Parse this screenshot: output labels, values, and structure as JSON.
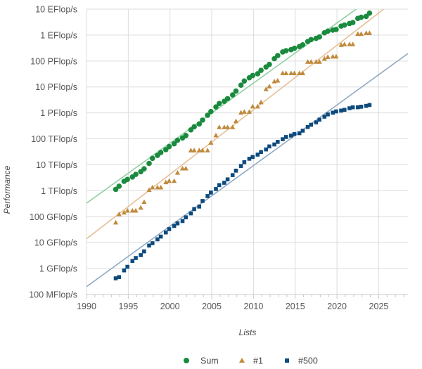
{
  "chart_data": {
    "type": "scatter",
    "title": "",
    "xlabel": "Lists",
    "ylabel": "Performance",
    "xlim": [
      1990,
      2028.5
    ],
    "ylim_gflops_log": [
      0.1,
      10000000000
    ],
    "yscale": "log",
    "grid": true,
    "legend_position": "bottom",
    "x_ticks": [
      "1990",
      "1995",
      "2000",
      "2005",
      "2010",
      "2015",
      "2020",
      "2025"
    ],
    "x_tick_values": [
      1990,
      1995,
      2000,
      2005,
      2010,
      2015,
      2020,
      2025
    ],
    "y_ticks": [
      "100 MFlop/s",
      "1 GFlop/s",
      "10 GFlop/s",
      "100 GFlop/s",
      "1 TFlop/s",
      "10 TFlop/s",
      "100 TFlop/s",
      "1 PFlop/s",
      "10 PFlop/s",
      "100 PFlop/s",
      "1 EFlop/s",
      "10 EFlop/s"
    ],
    "y_tick_values_gflops": [
      0.1,
      1,
      10,
      100,
      1000,
      10000,
      100000,
      1000000,
      10000000,
      100000000,
      1000000000,
      10000000000
    ],
    "x": [
      1993.5,
      1993.9,
      1994.5,
      1994.9,
      1995.5,
      1995.9,
      1996.5,
      1996.9,
      1997.5,
      1997.9,
      1998.5,
      1998.9,
      1999.5,
      1999.9,
      2000.5,
      2000.9,
      2001.5,
      2001.9,
      2002.5,
      2002.9,
      2003.5,
      2003.9,
      2004.5,
      2004.9,
      2005.5,
      2005.9,
      2006.5,
      2006.9,
      2007.5,
      2007.9,
      2008.5,
      2008.9,
      2009.5,
      2009.9,
      2010.5,
      2010.9,
      2011.5,
      2011.9,
      2012.5,
      2012.9,
      2013.5,
      2013.9,
      2014.5,
      2014.9,
      2015.5,
      2015.9,
      2016.5,
      2016.9,
      2017.5,
      2017.9,
      2018.5,
      2018.9,
      2019.5,
      2019.9,
      2020.5,
      2020.9,
      2021.5,
      2021.9,
      2022.5,
      2022.9,
      2023.5,
      2023.9
    ],
    "units": "GFlop/s",
    "series": [
      {
        "name": "Sum",
        "marker": "circle",
        "color": "#1a8a3e",
        "trend_color": "#8fd0a2",
        "trend": [
          [
            1990,
            330
          ],
          [
            2022.3,
            10000000000
          ]
        ],
        "values": [
          1128,
          1493,
          2317,
          2732,
          3394,
          4269,
          5424,
          7010,
          11300,
          17700,
          23100,
          29800,
          38400,
          50400,
          64300,
          88500,
          108100,
          134500,
          222000,
          293000,
          375000,
          528000,
          813000,
          1127000,
          1690000,
          2300000,
          2790000,
          3540000,
          4920000,
          6970000,
          11700000,
          16950000,
          22600000,
          27600000,
          32400000,
          43700000,
          58900000,
          74100000,
          123000000,
          162000000,
          223000000,
          250000000,
          274000000,
          309000000,
          363000000,
          420000000,
          567000000,
          672000000,
          749000000,
          845000000,
          1220000000,
          1414000000,
          1560000000,
          1650000000,
          2220000000,
          2430000000,
          2790000000,
          3040000000,
          4400000000,
          4860000000,
          5240000000,
          7010000000
        ]
      },
      {
        "name": "#1",
        "marker": "triangle",
        "color": "#c08a3c",
        "trend_color": "#e6c096",
        "trend": [
          [
            1990,
            14
          ],
          [
            2025.6,
            10000000000
          ]
        ],
        "values": [
          59.7,
          124,
          143.4,
          170.4,
          170.4,
          170.4,
          220.4,
          368.2,
          1068,
          1338,
          1338,
          1338,
          2121,
          2379,
          2379,
          4938,
          7226,
          7226,
          35860,
          35860,
          35860,
          35860,
          35860,
          70720,
          136800,
          280600,
          280600,
          280600,
          280600,
          478200,
          1026000,
          1105000,
          1105000,
          1759000,
          1759000,
          2566000,
          8162000,
          10510000,
          16320000,
          17590000,
          33860000,
          33860000,
          33860000,
          33860000,
          33860000,
          33860000,
          93010000,
          93010000,
          93010000,
          93010000,
          122300000,
          143500000,
          148600000,
          148600000,
          415500000,
          442000000,
          442000000,
          442000000,
          1102000000,
          1102000000,
          1194000000,
          1194000000
        ]
      },
      {
        "name": "#500",
        "marker": "square",
        "color": "#0d4a7e",
        "trend_color": "#92a9c2",
        "trend": [
          [
            1990,
            0.2
          ],
          [
            2028.5,
            195000000
          ]
        ],
        "values": [
          0.42,
          0.47,
          0.85,
          1.17,
          1.96,
          2.56,
          3.3,
          4.6,
          7.7,
          9.5,
          13.4,
          17.1,
          24.7,
          33.1,
          43.8,
          55.1,
          67.8,
          94.3,
          134,
          196,
          245,
          403,
          624,
          851,
          1166,
          1646,
          2026,
          2737,
          4005,
          5929,
          9000,
          12640,
          17090,
          20050,
          24670,
          31120,
          39090,
          50940,
          60820,
          76500,
          96620,
          117800,
          133700,
          153400,
          164700,
          206300,
          286100,
          349300,
          432200,
          548300,
          715600,
          874800,
          1022000,
          1142000,
          1228000,
          1317000,
          1511000,
          1646000,
          1649000,
          1730000,
          1870000,
          2020000
        ]
      }
    ]
  }
}
